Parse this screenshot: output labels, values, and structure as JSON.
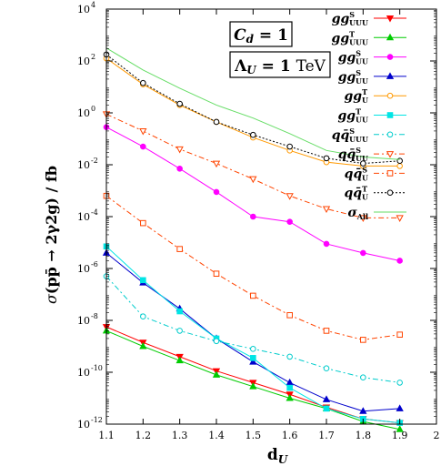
{
  "chart_data": {
    "type": "line",
    "xlabel": "d_U",
    "ylabel": "σ(pp̄ → 2γ2g) / fb",
    "xlim": [
      1.1,
      2.0
    ],
    "ylim_log10": [
      -12,
      4
    ],
    "y_scale": "log",
    "x_ticks": [
      "1.1",
      "1.2",
      "1.3",
      "1.4",
      "1.5",
      "1.6",
      "1.7",
      "1.8",
      "1.9",
      "2"
    ],
    "y_ticks": [
      {
        "exp": 4,
        "label": "10",
        "sup": "4"
      },
      {
        "exp": 2,
        "label": "10",
        "sup": "2"
      },
      {
        "exp": 0,
        "label": "10",
        "sup": "0"
      },
      {
        "exp": -2,
        "label": "10",
        "sup": "-2"
      },
      {
        "exp": -4,
        "label": "10",
        "sup": "-4"
      },
      {
        "exp": -6,
        "label": "10",
        "sup": "-6"
      },
      {
        "exp": -8,
        "label": "10",
        "sup": "-8"
      },
      {
        "exp": -10,
        "label": "10",
        "sup": "-10"
      },
      {
        "exp": -12,
        "label": "10",
        "sup": "-12"
      }
    ],
    "annotations": [
      "C_d = 1",
      "Λ_U = 1 TeV"
    ],
    "grid": false,
    "legend_position": "top-right",
    "x": [
      1.1,
      1.2,
      1.3,
      1.4,
      1.5,
      1.6,
      1.7,
      1.8,
      1.9
    ],
    "series": [
      {
        "name": "gg^S_UUU",
        "color": "#ff0000",
        "marker": "tri-down",
        "dash": "",
        "fill": true,
        "log10": [
          -8.25,
          -8.85,
          -9.4,
          -9.95,
          -10.4,
          -10.85,
          -11.35,
          -11.8,
          -11.95
        ]
      },
      {
        "name": "gg^T_UUU",
        "color": "#00cc00",
        "marker": "tri-up",
        "dash": "",
        "fill": true,
        "log10": [
          -8.4,
          -9.0,
          -9.55,
          -10.1,
          -10.55,
          -11.0,
          -11.4,
          -11.9,
          -12.2
        ]
      },
      {
        "name": "gg^S_UU",
        "color": "#ff00ff",
        "marker": "circle",
        "dash": "",
        "fill": true,
        "log10": [
          -0.55,
          -1.3,
          -2.15,
          -3.05,
          -4.0,
          -4.2,
          -5.05,
          -5.4,
          -5.7
        ]
      },
      {
        "name": "gg^S_UU",
        "color": "#0000cc",
        "marker": "tri-up",
        "dash": "",
        "fill": true,
        "log10": [
          -5.4,
          -6.55,
          -7.55,
          -8.7,
          -9.6,
          -10.4,
          -11.05,
          -11.5,
          -11.4
        ]
      },
      {
        "name": "gg^T_U",
        "color": "#ff9900",
        "marker": "circle",
        "dash": "",
        "fill": false,
        "log10": [
          2.1,
          1.1,
          0.3,
          -0.35,
          -0.95,
          -1.45,
          -1.9,
          -2.05,
          -2.05
        ]
      },
      {
        "name": "gg^T_UU",
        "color": "#00e5e5",
        "marker": "square",
        "dash": "",
        "fill": true,
        "log10": [
          -5.15,
          -6.45,
          -7.65,
          -8.7,
          -9.45,
          -10.6,
          -11.4,
          -11.8,
          -11.95
        ]
      },
      {
        "name": "qq̄^S_UUU",
        "color": "#00cccc",
        "marker": "circle",
        "dash": "6,3,2,3",
        "fill": false,
        "log10": [
          -6.3,
          -7.85,
          -8.4,
          -8.8,
          -9.1,
          -9.4,
          -9.85,
          -10.2,
          -10.4
        ]
      },
      {
        "name": "qq̄^S_UU",
        "color": "#ff4400",
        "marker": "tri-down",
        "dash": "6,3,2,3",
        "fill": false,
        "log10": [
          -0.05,
          -0.7,
          -1.4,
          -1.95,
          -2.55,
          -3.2,
          -3.7,
          -4.05,
          -4.05
        ]
      },
      {
        "name": "qq̄^S_U",
        "color": "#ff4400",
        "marker": "square",
        "dash": "6,3,2,3",
        "fill": false,
        "log10": [
          -3.2,
          -4.25,
          -5.25,
          -6.2,
          -7.05,
          -7.8,
          -8.4,
          -8.75,
          -8.55
        ]
      },
      {
        "name": "qq̄^T_U",
        "color": "#000000",
        "marker": "circle",
        "dash": "2,2",
        "fill": false,
        "log10": [
          2.25,
          1.15,
          0.35,
          -0.35,
          -0.85,
          -1.3,
          -1.75,
          -1.95,
          -1.85
        ]
      },
      {
        "name": "σ_All",
        "color": "#66dd66",
        "marker": "none",
        "dash": "",
        "fill": false,
        "log10": [
          2.5,
          1.65,
          0.95,
          0.3,
          -0.2,
          -0.8,
          -1.45,
          -1.7,
          -1.8
        ]
      }
    ]
  }
}
